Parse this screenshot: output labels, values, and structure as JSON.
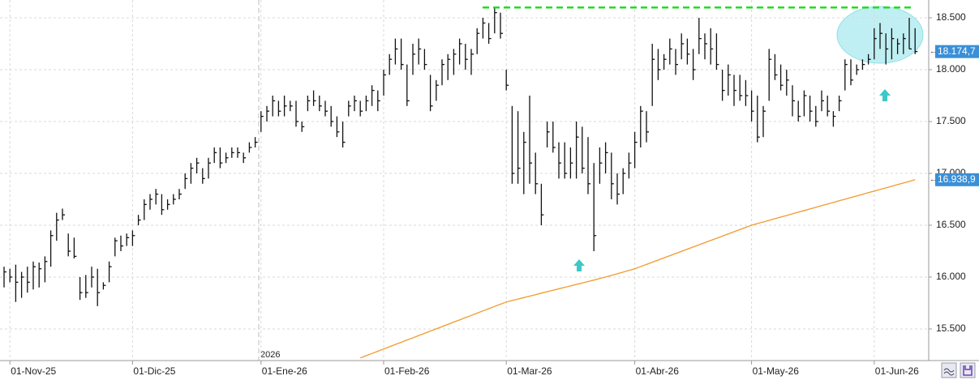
{
  "chart_data": {
    "type": "ohlc",
    "year_label": "2026",
    "categories": [
      null,
      "01-Nov-25",
      null,
      null,
      null,
      null,
      null,
      null,
      null,
      null,
      null,
      null,
      null,
      null,
      null,
      null,
      null,
      null,
      null,
      null,
      null,
      null,
      "01-Dic-25",
      null,
      null,
      null,
      null,
      null,
      null,
      null,
      null,
      null,
      null,
      null,
      null,
      null,
      null,
      null,
      null,
      null,
      null,
      null,
      null,
      null,
      "01-Ene-26",
      null,
      null,
      null,
      null,
      null,
      null,
      null,
      null,
      null,
      null,
      null,
      null,
      null,
      null,
      null,
      null,
      null,
      null,
      null,
      null,
      "01-Feb-26",
      null,
      null,
      null,
      null,
      null,
      null,
      null,
      null,
      null,
      null,
      null,
      null,
      null,
      null,
      null,
      null,
      null,
      null,
      null,
      null,
      "01-Mar-26",
      null,
      null,
      null,
      null,
      null,
      null,
      null,
      null,
      null,
      null,
      null,
      null,
      null,
      null,
      null,
      null,
      null,
      null,
      null,
      null,
      null,
      "01-Abr-26",
      null,
      null,
      null,
      null,
      null,
      null,
      null,
      null,
      null,
      null,
      null,
      null,
      null,
      null,
      null,
      null,
      null,
      null,
      null,
      "01-May-26",
      null,
      null,
      null,
      null,
      null,
      null,
      null,
      null,
      null,
      null,
      null,
      null,
      null,
      null,
      null,
      null,
      null,
      null,
      null,
      null,
      "01-Jun-26",
      null,
      null,
      null,
      null,
      null,
      null,
      null
    ],
    "ohlc": {
      "color": "#111111",
      "high": [
        16100,
        16080,
        16120,
        16050,
        16100,
        16150,
        16140,
        16200,
        16450,
        16620,
        16660,
        16420,
        16380,
        16000,
        16020,
        16100,
        16080,
        15950,
        16150,
        16380,
        16400,
        16420,
        16450,
        16600,
        16750,
        16800,
        16850,
        16800,
        16750,
        16800,
        16850,
        17000,
        17100,
        17150,
        17050,
        17150,
        17250,
        17250,
        17200,
        17250,
        17250,
        17200,
        17300,
        17350,
        17600,
        17650,
        17750,
        17700,
        17750,
        17700,
        17700,
        17500,
        17750,
        17800,
        17750,
        17700,
        17650,
        17550,
        17500,
        17700,
        17750,
        17700,
        17750,
        17850,
        17800,
        18000,
        18150,
        18300,
        18300,
        18050,
        18250,
        18300,
        18200,
        17950,
        17900,
        18100,
        18150,
        18200,
        18300,
        18250,
        18200,
        18400,
        18500,
        18450,
        18600,
        18550,
        18000,
        17650,
        17600,
        17400,
        17750,
        17200,
        16900,
        17500,
        17500,
        17300,
        17300,
        17250,
        17500,
        17450,
        17350,
        17100,
        17250,
        17300,
        17200,
        17000,
        17050,
        17200,
        17400,
        17650,
        17600,
        18250,
        18200,
        18150,
        18300,
        18200,
        18350,
        18300,
        18200,
        18500,
        18350,
        18400,
        18350,
        18000,
        18050,
        17950,
        17950,
        17900,
        17800,
        17750,
        17650,
        18200,
        18150,
        18050,
        18000,
        17850,
        17700,
        17800,
        17750,
        17650,
        17800,
        17750,
        17600,
        17750,
        18100,
        18100,
        18050,
        18100,
        18150,
        18400,
        18450,
        18350,
        18400,
        18300,
        18350,
        18500,
        18400
      ],
      "low": [
        15900,
        15950,
        15760,
        15800,
        15850,
        15880,
        15900,
        15950,
        16100,
        16350,
        16550,
        16200,
        16180,
        15780,
        15800,
        15900,
        15720,
        15880,
        15950,
        16200,
        16250,
        16300,
        16300,
        16500,
        16550,
        16650,
        16700,
        16600,
        16650,
        16700,
        16750,
        16850,
        16900,
        17000,
        16900,
        16950,
        17100,
        17050,
        17100,
        17150,
        17150,
        17100,
        17200,
        17250,
        17400,
        17500,
        17550,
        17550,
        17550,
        17600,
        17450,
        17400,
        17600,
        17650,
        17600,
        17550,
        17450,
        17350,
        17250,
        17550,
        17600,
        17550,
        17600,
        17650,
        17600,
        17750,
        17950,
        18050,
        18000,
        17650,
        17950,
        18050,
        18000,
        17600,
        17700,
        17850,
        17900,
        17950,
        18050,
        18000,
        17950,
        18150,
        18300,
        18250,
        18350,
        18300,
        17800,
        16900,
        16900,
        16800,
        16900,
        16800,
        16500,
        17250,
        17200,
        16950,
        16950,
        16950,
        16950,
        17000,
        16800,
        16250,
        16900,
        17000,
        16750,
        16700,
        16800,
        16950,
        17050,
        17250,
        17300,
        17650,
        17900,
        18000,
        18050,
        17950,
        18100,
        18050,
        17900,
        18150,
        18100,
        18050,
        18000,
        17700,
        17750,
        17650,
        17700,
        17650,
        17500,
        17300,
        17350,
        17700,
        17900,
        17800,
        17750,
        17550,
        17500,
        17550,
        17500,
        17450,
        17600,
        17550,
        17450,
        17600,
        17800,
        17850,
        17950,
        18000,
        18050,
        18100,
        18200,
        18050,
        18100,
        18150,
        18150,
        18200,
        18150
      ],
      "close": [
        16050,
        16000,
        15950,
        16000,
        15950,
        16100,
        16080,
        16150,
        16400,
        16550,
        16600,
        16250,
        16200,
        15850,
        15850,
        16000,
        15850,
        15920,
        16100,
        16350,
        16300,
        16380,
        16400,
        16550,
        16700,
        16750,
        16800,
        16650,
        16700,
        16750,
        16800,
        16950,
        17050,
        17100,
        16950,
        17100,
        17200,
        17100,
        17150,
        17200,
        17200,
        17150,
        17250,
        17300,
        17550,
        17600,
        17700,
        17600,
        17650,
        17650,
        17500,
        17450,
        17700,
        17700,
        17650,
        17600,
        17500,
        17400,
        17300,
        17650,
        17700,
        17600,
        17700,
        17800,
        17700,
        17950,
        18100,
        18200,
        18050,
        17700,
        18150,
        18200,
        18050,
        17650,
        17850,
        18050,
        18100,
        18150,
        18250,
        18100,
        18150,
        18350,
        18450,
        18300,
        18550,
        18350,
        17850,
        17000,
        17050,
        17300,
        17100,
        16900,
        16600,
        17400,
        17250,
        17100,
        17000,
        17100,
        17350,
        17050,
        16900,
        16400,
        17100,
        17200,
        16900,
        16800,
        17000,
        17100,
        17300,
        17600,
        17400,
        18100,
        18000,
        18100,
        18200,
        18050,
        18250,
        18150,
        18000,
        18300,
        18250,
        18200,
        18050,
        17800,
        17950,
        17800,
        17750,
        17750,
        17600,
        17350,
        17600,
        18100,
        17950,
        17850,
        17900,
        17700,
        17550,
        17750,
        17600,
        17500,
        17700,
        17600,
        17550,
        17700,
        18050,
        17900,
        18000,
        18050,
        18100,
        18300,
        18350,
        18200,
        18300,
        18250,
        18300,
        18200,
        18174.7
      ],
      "close_labels": {
        "156": "18.174,7"
      },
      "label_color": "#3a8fd8"
    },
    "overlays": [
      {
        "type": "line",
        "color": "#f39a2b",
        "values": [
          null,
          null,
          null,
          null,
          null,
          null,
          null,
          null,
          null,
          null,
          null,
          null,
          null,
          null,
          null,
          null,
          null,
          null,
          null,
          null,
          null,
          null,
          null,
          null,
          null,
          null,
          null,
          null,
          null,
          null,
          null,
          null,
          null,
          null,
          null,
          null,
          null,
          null,
          null,
          null,
          null,
          null,
          null,
          null,
          null,
          null,
          null,
          null,
          null,
          null,
          null,
          null,
          null,
          null,
          null,
          null,
          null,
          null,
          null,
          null,
          null,
          15220,
          15242,
          15263,
          15285,
          15306,
          15328,
          15350,
          15371,
          15393,
          15414,
          15436,
          15458,
          15479,
          15501,
          15522,
          15544,
          15566,
          15587,
          15609,
          15630,
          15652,
          15674,
          15695,
          15717,
          15738,
          15760,
          15774,
          15788,
          15802,
          15816,
          15830,
          15845,
          15859,
          15873,
          15887,
          15901,
          15915,
          15929,
          15943,
          15957,
          15971,
          15986,
          16000,
          16016,
          16032,
          16048,
          16064,
          16080,
          16101,
          16122,
          16143,
          16164,
          16185,
          16206,
          16227,
          16248,
          16269,
          16290,
          16311,
          16332,
          16353,
          16374,
          16395,
          16416,
          16437,
          16458,
          16479,
          16500,
          16516,
          16531,
          16547,
          16563,
          16579,
          16594,
          16610,
          16626,
          16641,
          16657,
          16673,
          16689,
          16704,
          16720,
          16736,
          16751,
          16767,
          16782,
          16798,
          16814,
          16829,
          16845,
          16860,
          16876,
          16892,
          16907,
          16923,
          16938.9
        ],
        "value_labels": {
          "156": "16.938,9"
        }
      }
    ],
    "resistance": {
      "value": 18600,
      "color": "#22dd22"
    },
    "ylim": [
      15195,
      18672
    ],
    "yticks": [
      {
        "value": 15500,
        "label": "15.500"
      },
      {
        "value": 16000,
        "label": "16.000"
      },
      {
        "value": 16500,
        "label": "16.500"
      },
      {
        "value": 17000,
        "label": "17.000"
      },
      {
        "value": 17500,
        "label": "17.500"
      },
      {
        "value": 18000,
        "label": "18.000"
      },
      {
        "value": 18500,
        "label": "18.500"
      }
    ],
    "grid": true
  }
}
